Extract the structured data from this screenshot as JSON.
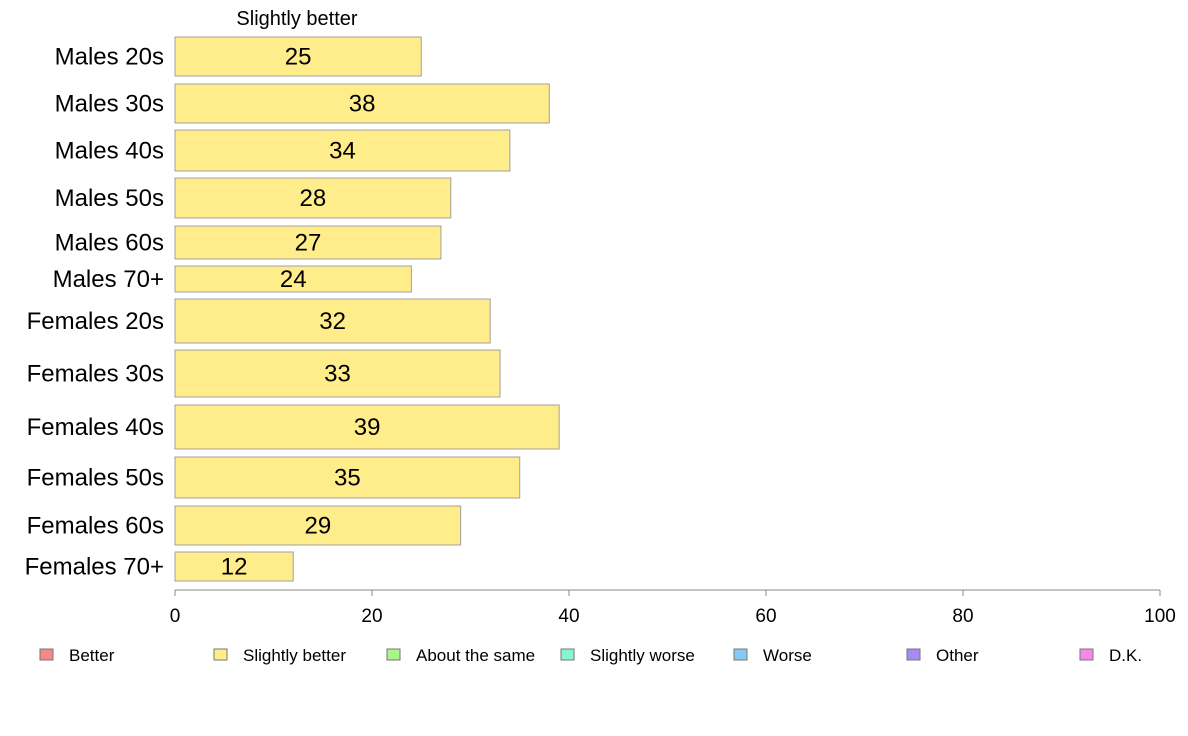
{
  "chart_data": {
    "type": "bar",
    "orientation": "horizontal",
    "stacked": true,
    "column_header": "Slightly better",
    "categories": [
      "Males 20s",
      "Males 30s",
      "Males 40s",
      "Males 50s",
      "Males 60s",
      "Males 70+",
      "Females 20s",
      "Females 30s",
      "Females 40s",
      "Females 50s",
      "Females 60s",
      "Females 70+"
    ],
    "series": [
      {
        "name": "Slightly better",
        "color": "#ffec8b",
        "values": [
          25,
          38,
          34,
          28,
          27,
          24,
          32,
          33,
          39,
          35,
          29,
          12
        ]
      }
    ],
    "xlim": [
      0,
      100
    ],
    "xticks": [
      0,
      20,
      40,
      60,
      80,
      100
    ],
    "grid": false,
    "legend": {
      "placement": "bottom",
      "entries": [
        {
          "name": "Better",
          "color": "#f4898a"
        },
        {
          "name": "Slightly better",
          "color": "#ffec8b"
        },
        {
          "name": "About the same",
          "color": "#a8f58a"
        },
        {
          "name": "Slightly worse",
          "color": "#88f5cc"
        },
        {
          "name": "Worse",
          "color": "#88c8f5"
        },
        {
          "name": "Other",
          "color": "#a88af5"
        },
        {
          "name": "D.K.",
          "color": "#f588e8"
        }
      ]
    }
  }
}
